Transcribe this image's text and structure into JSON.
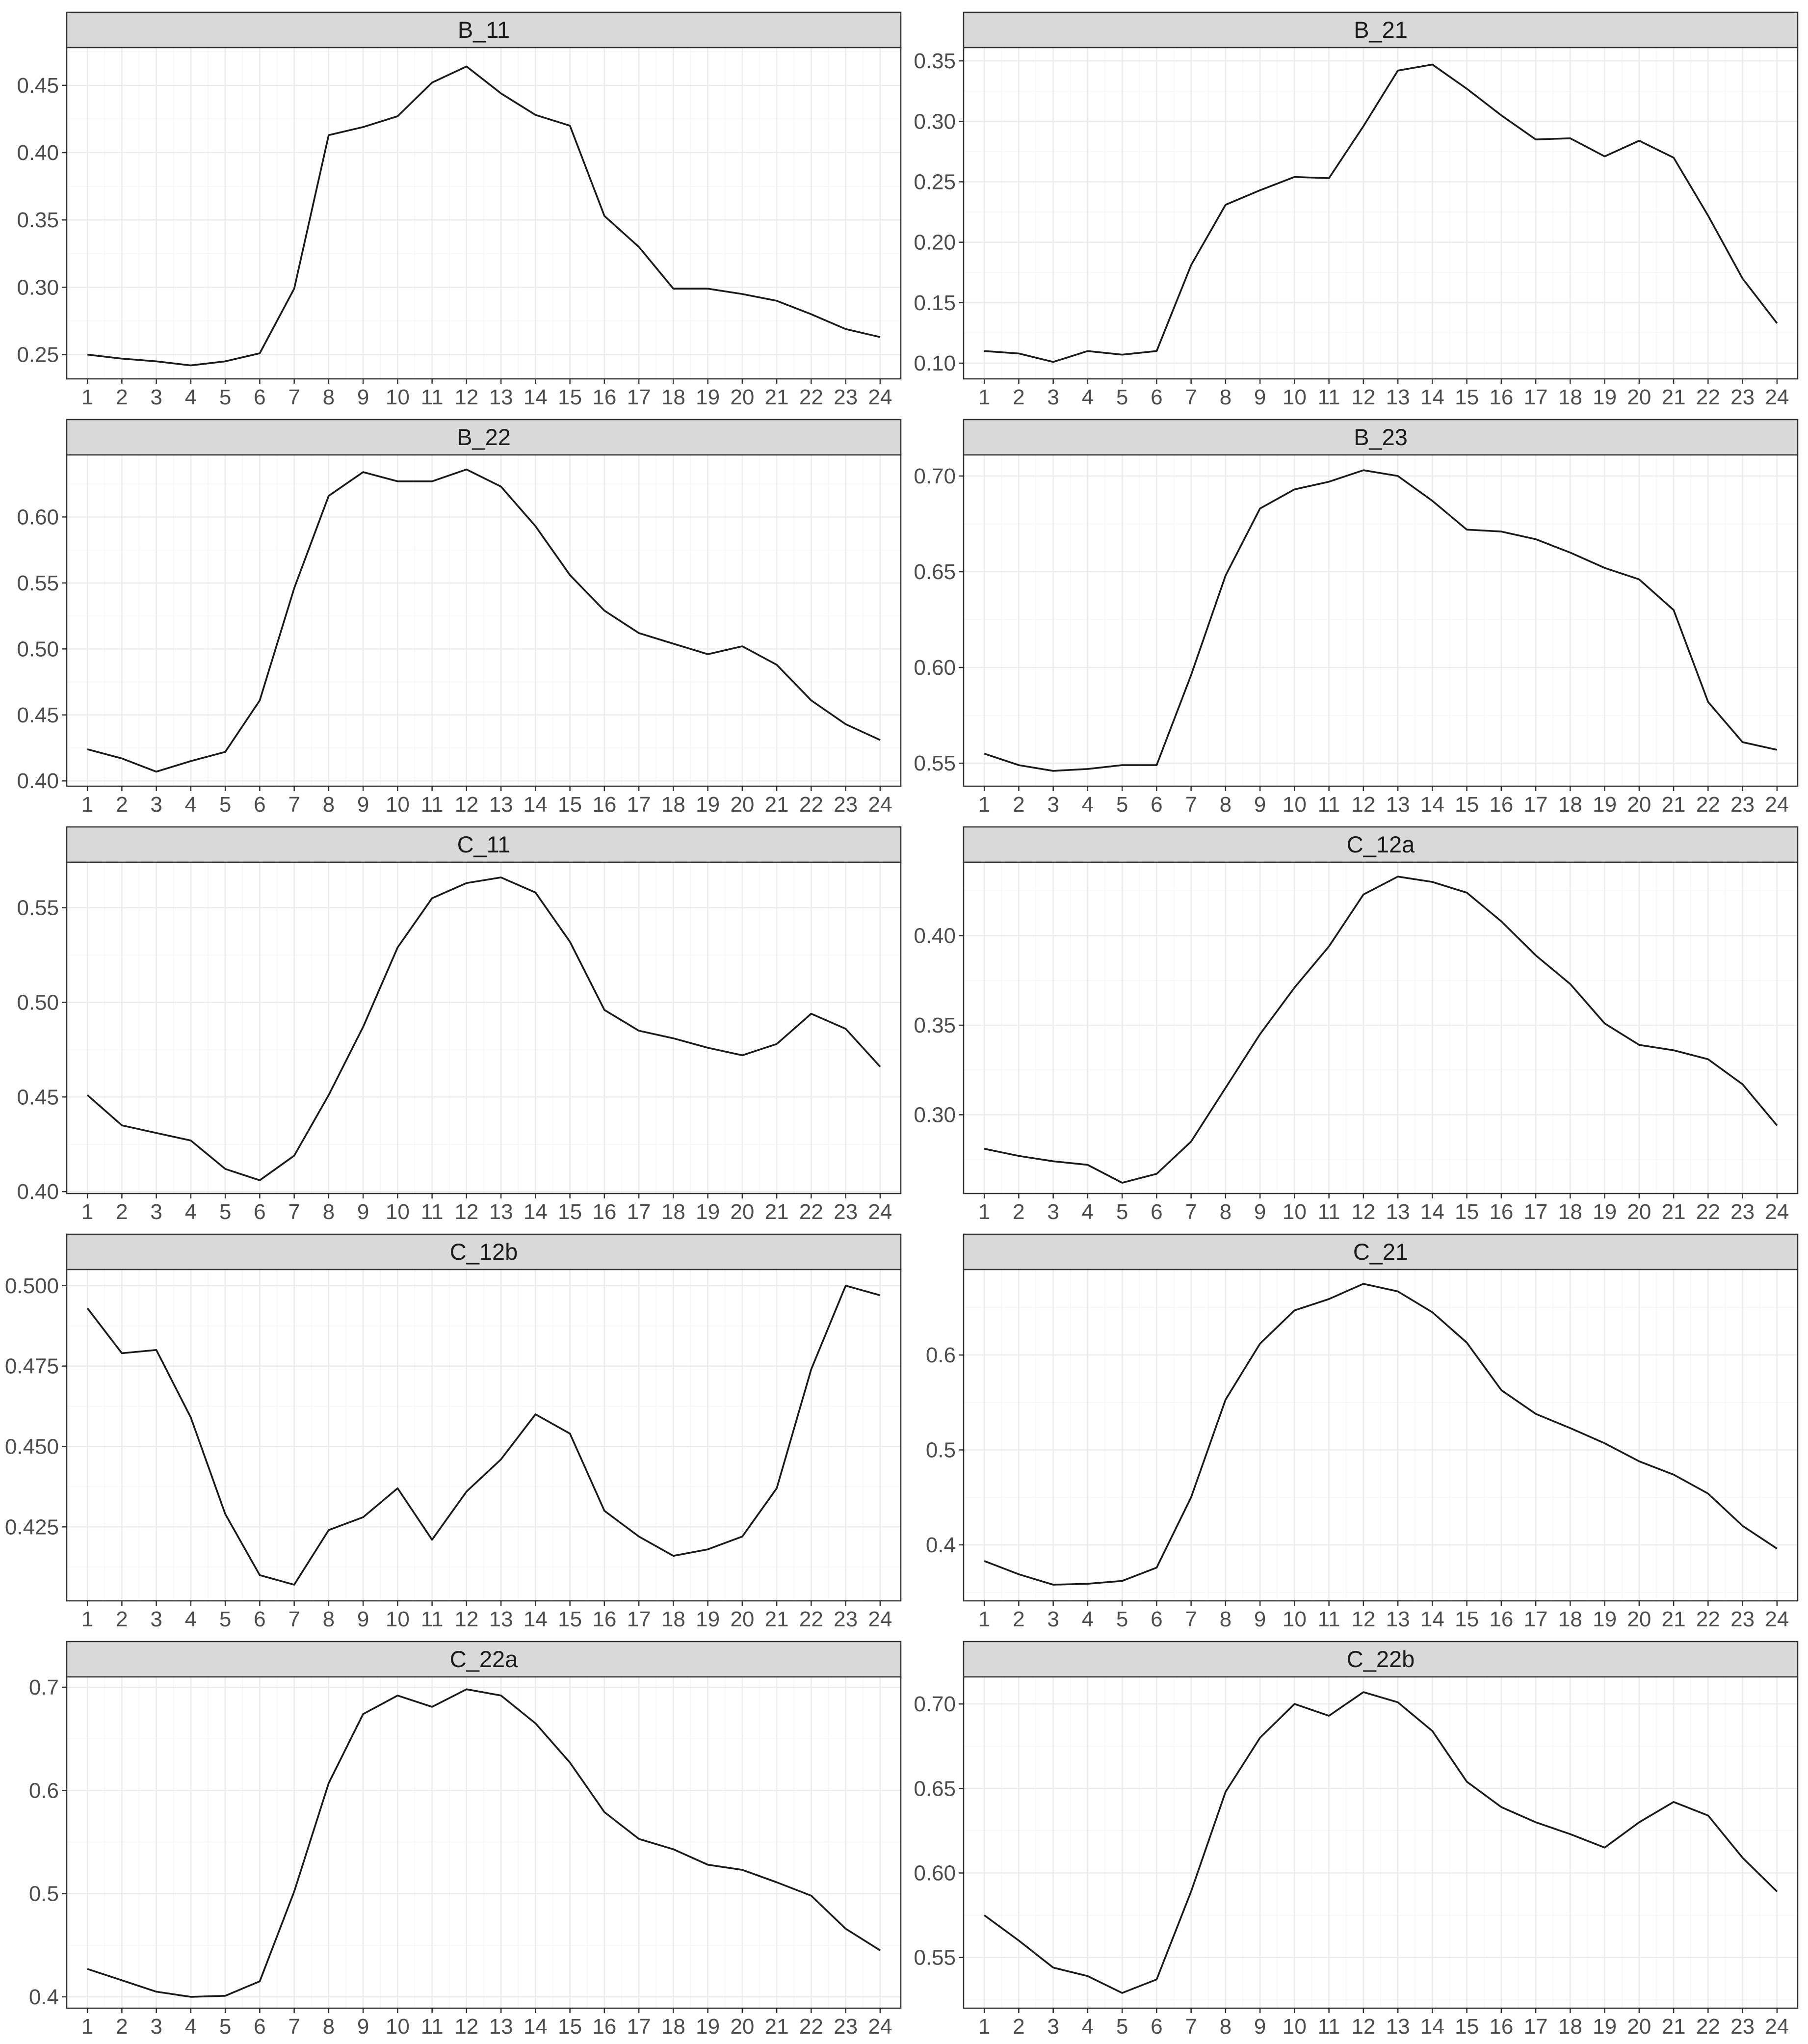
{
  "chart_data": [
    {
      "type": "line",
      "title": "B_11",
      "x": [
        1,
        2,
        3,
        4,
        5,
        6,
        7,
        8,
        9,
        10,
        11,
        12,
        13,
        14,
        15,
        16,
        17,
        18,
        19,
        20,
        21,
        22,
        23,
        24
      ],
      "values": [
        0.25,
        0.247,
        0.245,
        0.242,
        0.245,
        0.251,
        0.299,
        0.413,
        0.419,
        0.427,
        0.452,
        0.464,
        0.444,
        0.428,
        0.42,
        0.353,
        0.33,
        0.299,
        0.299,
        0.295,
        0.29,
        0.28,
        0.269,
        0.263
      ],
      "ylim": [
        0.232,
        0.478
      ],
      "y_ticks": [
        0.25,
        0.3,
        0.35,
        0.4,
        0.45
      ],
      "y_tick_labels": [
        "0.25",
        "0.30",
        "0.35",
        "0.40",
        "0.45"
      ],
      "grid": true
    },
    {
      "type": "line",
      "title": "B_21",
      "x": [
        1,
        2,
        3,
        4,
        5,
        6,
        7,
        8,
        9,
        10,
        11,
        12,
        13,
        14,
        15,
        16,
        17,
        18,
        19,
        20,
        21,
        22,
        23,
        24
      ],
      "values": [
        0.11,
        0.108,
        0.101,
        0.11,
        0.107,
        0.11,
        0.181,
        0.231,
        0.243,
        0.254,
        0.253,
        0.296,
        0.342,
        0.347,
        0.327,
        0.305,
        0.285,
        0.286,
        0.271,
        0.284,
        0.27,
        0.222,
        0.17,
        0.133
      ],
      "ylim": [
        0.087,
        0.361
      ],
      "y_ticks": [
        0.1,
        0.15,
        0.2,
        0.25,
        0.3,
        0.35
      ],
      "y_tick_labels": [
        "0.10",
        "0.15",
        "0.20",
        "0.25",
        "0.30",
        "0.35"
      ],
      "grid": true
    },
    {
      "type": "line",
      "title": "B_22",
      "x": [
        1,
        2,
        3,
        4,
        5,
        6,
        7,
        8,
        9,
        10,
        11,
        12,
        13,
        14,
        15,
        16,
        17,
        18,
        19,
        20,
        21,
        22,
        23,
        24
      ],
      "values": [
        0.424,
        0.417,
        0.407,
        0.415,
        0.422,
        0.461,
        0.546,
        0.616,
        0.634,
        0.627,
        0.627,
        0.636,
        0.623,
        0.593,
        0.556,
        0.529,
        0.512,
        0.504,
        0.496,
        0.502,
        0.488,
        0.461,
        0.443,
        0.431
      ],
      "ylim": [
        0.396,
        0.647
      ],
      "y_ticks": [
        0.4,
        0.45,
        0.5,
        0.55,
        0.6
      ],
      "y_tick_labels": [
        "0.40",
        "0.45",
        "0.50",
        "0.55",
        "0.60"
      ],
      "grid": true
    },
    {
      "type": "line",
      "title": "B_23",
      "x": [
        1,
        2,
        3,
        4,
        5,
        6,
        7,
        8,
        9,
        10,
        11,
        12,
        13,
        14,
        15,
        16,
        17,
        18,
        19,
        20,
        21,
        22,
        23,
        24
      ],
      "values": [
        0.555,
        0.549,
        0.546,
        0.547,
        0.549,
        0.549,
        0.596,
        0.648,
        0.683,
        0.693,
        0.697,
        0.703,
        0.7,
        0.687,
        0.672,
        0.671,
        0.667,
        0.66,
        0.652,
        0.646,
        0.63,
        0.582,
        0.561,
        0.557
      ],
      "ylim": [
        0.538,
        0.711
      ],
      "y_ticks": [
        0.55,
        0.6,
        0.65,
        0.7
      ],
      "y_tick_labels": [
        "0.55",
        "0.60",
        "0.65",
        "0.70"
      ],
      "grid": true
    },
    {
      "type": "line",
      "title": "C_11",
      "x": [
        1,
        2,
        3,
        4,
        5,
        6,
        7,
        8,
        9,
        10,
        11,
        12,
        13,
        14,
        15,
        16,
        17,
        18,
        19,
        20,
        21,
        22,
        23,
        24
      ],
      "values": [
        0.451,
        0.435,
        0.431,
        0.427,
        0.412,
        0.406,
        0.419,
        0.451,
        0.487,
        0.529,
        0.555,
        0.563,
        0.566,
        0.558,
        0.532,
        0.496,
        0.485,
        0.481,
        0.476,
        0.472,
        0.478,
        0.494,
        0.486,
        0.466
      ],
      "ylim": [
        0.399,
        0.574
      ],
      "y_ticks": [
        0.4,
        0.45,
        0.5,
        0.55
      ],
      "y_tick_labels": [
        "0.40",
        "0.45",
        "0.50",
        "0.55"
      ],
      "grid": true
    },
    {
      "type": "line",
      "title": "C_12a",
      "x": [
        1,
        2,
        3,
        4,
        5,
        6,
        7,
        8,
        9,
        10,
        11,
        12,
        13,
        14,
        15,
        16,
        17,
        18,
        19,
        20,
        21,
        22,
        23,
        24
      ],
      "values": [
        0.281,
        0.277,
        0.274,
        0.272,
        0.262,
        0.267,
        0.285,
        0.315,
        0.345,
        0.371,
        0.394,
        0.423,
        0.433,
        0.43,
        0.424,
        0.408,
        0.389,
        0.373,
        0.351,
        0.339,
        0.336,
        0.331,
        0.317,
        0.294
      ],
      "ylim": [
        0.256,
        0.441
      ],
      "y_ticks": [
        0.3,
        0.35,
        0.4
      ],
      "y_tick_labels": [
        "0.30",
        "0.35",
        "0.40"
      ],
      "grid": true
    },
    {
      "type": "line",
      "title": "C_12b",
      "x": [
        1,
        2,
        3,
        4,
        5,
        6,
        7,
        8,
        9,
        10,
        11,
        12,
        13,
        14,
        15,
        16,
        17,
        18,
        19,
        20,
        21,
        22,
        23,
        24
      ],
      "values": [
        0.493,
        0.479,
        0.48,
        0.459,
        0.429,
        0.41,
        0.407,
        0.424,
        0.428,
        0.437,
        0.421,
        0.436,
        0.446,
        0.46,
        0.454,
        0.43,
        0.422,
        0.416,
        0.418,
        0.422,
        0.437,
        0.474,
        0.5,
        0.497
      ],
      "ylim": [
        0.402,
        0.505
      ],
      "y_ticks": [
        0.425,
        0.45,
        0.475,
        0.5
      ],
      "y_tick_labels": [
        "0.425",
        "0.450",
        "0.475",
        "0.500"
      ],
      "grid": true
    },
    {
      "type": "line",
      "title": "C_21",
      "x": [
        1,
        2,
        3,
        4,
        5,
        6,
        7,
        8,
        9,
        10,
        11,
        12,
        13,
        14,
        15,
        16,
        17,
        18,
        19,
        20,
        21,
        22,
        23,
        24
      ],
      "values": [
        0.383,
        0.369,
        0.358,
        0.359,
        0.362,
        0.376,
        0.45,
        0.553,
        0.612,
        0.647,
        0.659,
        0.675,
        0.667,
        0.645,
        0.613,
        0.563,
        0.538,
        0.523,
        0.507,
        0.488,
        0.474,
        0.454,
        0.42,
        0.396
      ],
      "ylim": [
        0.341,
        0.69
      ],
      "y_ticks": [
        0.4,
        0.5,
        0.6
      ],
      "y_tick_labels": [
        "0.4",
        "0.5",
        "0.6"
      ],
      "grid": true
    },
    {
      "type": "line",
      "title": "C_22a",
      "x": [
        1,
        2,
        3,
        4,
        5,
        6,
        7,
        8,
        9,
        10,
        11,
        12,
        13,
        14,
        15,
        16,
        17,
        18,
        19,
        20,
        21,
        22,
        23,
        24
      ],
      "values": [
        0.427,
        0.416,
        0.405,
        0.4,
        0.401,
        0.415,
        0.502,
        0.607,
        0.674,
        0.692,
        0.681,
        0.698,
        0.692,
        0.665,
        0.627,
        0.579,
        0.553,
        0.543,
        0.528,
        0.523,
        0.511,
        0.498,
        0.466,
        0.445
      ],
      "ylim": [
        0.389,
        0.71
      ],
      "y_ticks": [
        0.4,
        0.5,
        0.6,
        0.7
      ],
      "y_tick_labels": [
        "0.4",
        "0.5",
        "0.6",
        "0.7"
      ],
      "grid": true
    },
    {
      "type": "line",
      "title": "C_22b",
      "x": [
        1,
        2,
        3,
        4,
        5,
        6,
        7,
        8,
        9,
        10,
        11,
        12,
        13,
        14,
        15,
        16,
        17,
        18,
        19,
        20,
        21,
        22,
        23,
        24
      ],
      "values": [
        0.575,
        0.56,
        0.544,
        0.539,
        0.529,
        0.537,
        0.589,
        0.648,
        0.68,
        0.7,
        0.693,
        0.707,
        0.701,
        0.684,
        0.654,
        0.639,
        0.63,
        0.623,
        0.615,
        0.63,
        0.642,
        0.634,
        0.609,
        0.589
      ],
      "ylim": [
        0.52,
        0.716
      ],
      "y_ticks": [
        0.55,
        0.6,
        0.65,
        0.7
      ],
      "y_tick_labels": [
        "0.55",
        "0.60",
        "0.65",
        "0.70"
      ],
      "grid": true
    }
  ],
  "style": {
    "background": "#ffffff",
    "panel_background": "#ffffff",
    "strip_background": "#d9d9d9",
    "strip_border": "#333333",
    "panel_border": "#333333",
    "grid_major": "#ebebeb",
    "grid_minor": "#f5f5f5",
    "line_color": "#1a1a1a",
    "tick_text": "#4d4d4d",
    "strip_text": "#1a1a1a"
  }
}
